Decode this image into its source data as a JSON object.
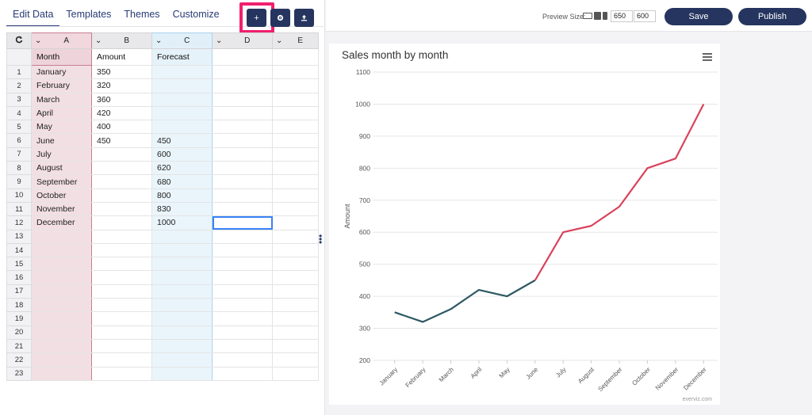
{
  "tabs": [
    "Edit Data",
    "Templates",
    "Themes",
    "Customize"
  ],
  "toolbar": {
    "add_label": "+",
    "settings_icon": "gear-icon",
    "upload_icon": "upload-icon"
  },
  "grid": {
    "refresh_icon": "refresh-icon",
    "columns": [
      "A",
      "B",
      "C",
      "D",
      "E"
    ],
    "names": [
      "Month",
      "Amount",
      "Forecast",
      "",
      ""
    ],
    "rows": [
      [
        "January",
        "350",
        ""
      ],
      [
        "February",
        "320",
        ""
      ],
      [
        "March",
        "360",
        ""
      ],
      [
        "April",
        "420",
        ""
      ],
      [
        "May",
        "400",
        ""
      ],
      [
        "June",
        "450",
        "450"
      ],
      [
        "July",
        "",
        "600"
      ],
      [
        "August",
        "",
        "620"
      ],
      [
        "September",
        "",
        "680"
      ],
      [
        "October",
        "",
        "800"
      ],
      [
        "November",
        "",
        "830"
      ],
      [
        "December",
        "",
        "1000"
      ],
      [
        "",
        "",
        ""
      ],
      [
        "",
        "",
        ""
      ],
      [
        "",
        "",
        ""
      ],
      [
        "",
        "",
        ""
      ],
      [
        "",
        "",
        ""
      ],
      [
        "",
        "",
        ""
      ],
      [
        "",
        "",
        ""
      ],
      [
        "",
        "",
        ""
      ],
      [
        "",
        "",
        ""
      ],
      [
        "",
        "",
        ""
      ],
      [
        "",
        "",
        ""
      ]
    ]
  },
  "topbar": {
    "preview_label": "Preview Size:",
    "width_value": "650",
    "height_value": "600",
    "save_label": "Save",
    "publish_label": "Publish"
  },
  "colors": {
    "actual": "#2e5863",
    "forecast": "#d9435b",
    "brand": "#26355f"
  },
  "chart_data": {
    "type": "line",
    "title": "Sales month by month",
    "ylabel": "Amount",
    "xlabel": "",
    "categories": [
      "January",
      "February",
      "March",
      "April",
      "May",
      "June",
      "July",
      "August",
      "September",
      "October",
      "November",
      "December"
    ],
    "series": [
      {
        "name": "Amount",
        "values": [
          350,
          320,
          360,
          420,
          400,
          450,
          null,
          null,
          null,
          null,
          null,
          null
        ]
      },
      {
        "name": "Forecast",
        "values": [
          null,
          null,
          null,
          null,
          null,
          450,
          600,
          620,
          680,
          800,
          830,
          1000
        ]
      }
    ],
    "yticks": [
      200,
      300,
      400,
      500,
      600,
      700,
      800,
      900,
      1000,
      1100
    ],
    "ylim": [
      200,
      1100
    ],
    "grid": true,
    "legend": "none",
    "credit": "everviz.com"
  }
}
